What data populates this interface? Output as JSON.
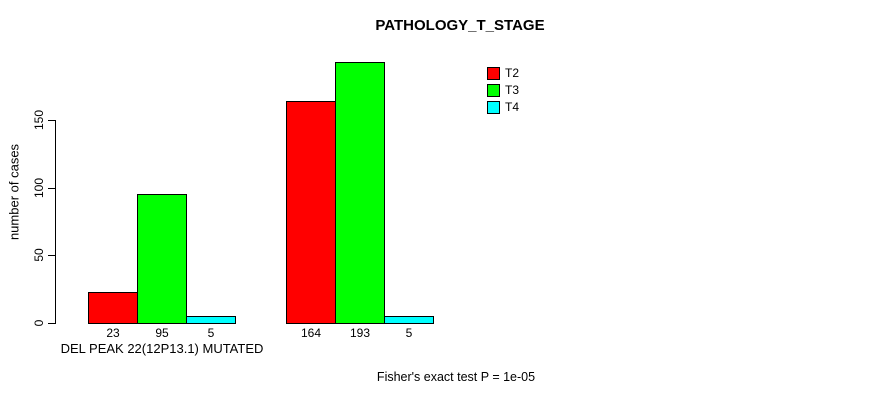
{
  "page": {
    "background_color": "#FFFFFF",
    "text_color": "#000000"
  },
  "chart_data": {
    "type": "bar",
    "title": "PATHOLOGY_T_STAGE",
    "xlabel": "",
    "ylabel": "number of cases",
    "yticks": [
      0,
      50,
      100,
      150
    ],
    "ylim": [
      0,
      193
    ],
    "grid": false,
    "legend_position": "top-right",
    "bar_value_labels_shown": true,
    "series": [
      {
        "name": "T2",
        "color": "#FF0000"
      },
      {
        "name": "T3",
        "color": "#00FF00"
      },
      {
        "name": "T4",
        "color": "#00FFFF"
      }
    ],
    "groups": [
      {
        "label": "DEL PEAK 22(12P13.1) MUTATED",
        "values": [
          23,
          95,
          5
        ]
      },
      {
        "label": "",
        "values": [
          164,
          193,
          5
        ]
      }
    ],
    "footer": "Fisher's exact test P = 1e-05"
  }
}
